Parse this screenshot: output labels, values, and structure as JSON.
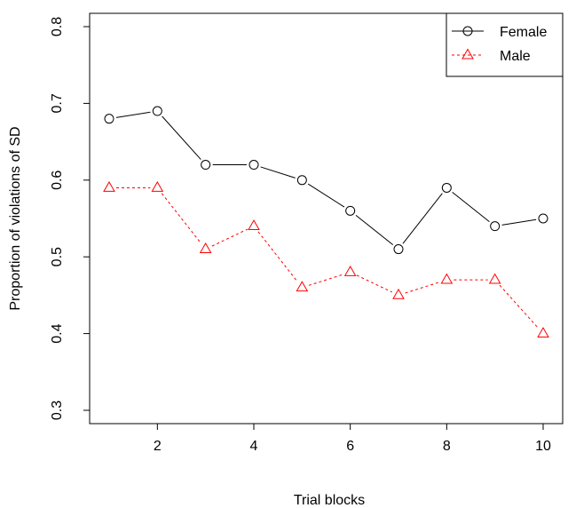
{
  "chart_data": {
    "type": "line",
    "xlabel": "Trial blocks",
    "ylabel": "Proportion of violations of SD",
    "xlim": [
      1,
      10
    ],
    "ylim": [
      0.3,
      0.8
    ],
    "x_ticks": [
      2,
      4,
      6,
      8,
      10
    ],
    "y_ticks": [
      0.3,
      0.4,
      0.5,
      0.6,
      0.7,
      0.8
    ],
    "x_tick_labels": [
      "2",
      "4",
      "6",
      "8",
      "10"
    ],
    "y_tick_labels": [
      "0.3",
      "0.4",
      "0.5",
      "0.6",
      "0.7",
      "0.8"
    ],
    "grid": false,
    "legend_position": "top-right",
    "x": [
      1,
      2,
      3,
      4,
      5,
      6,
      7,
      8,
      9,
      10
    ],
    "series": [
      {
        "name": "Female",
        "values": [
          0.68,
          0.69,
          0.62,
          0.62,
          0.6,
          0.56,
          0.51,
          0.59,
          0.54,
          0.55
        ],
        "color": "#000000",
        "marker": "circle",
        "line_style": "solid"
      },
      {
        "name": "Male",
        "values": [
          0.59,
          0.59,
          0.51,
          0.54,
          0.46,
          0.48,
          0.45,
          0.47,
          0.47,
          0.4
        ],
        "color": "#ff0000",
        "marker": "triangle",
        "line_style": "dashed"
      }
    ]
  }
}
